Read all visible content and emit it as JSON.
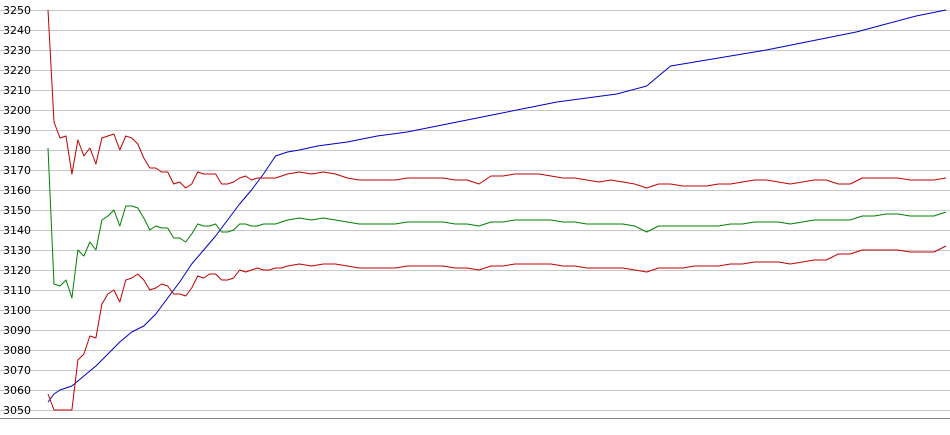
{
  "chart_data": {
    "type": "line",
    "title": "",
    "xlabel": "",
    "ylabel": "",
    "ylim": [
      3050,
      3250
    ],
    "yticks": [
      3050,
      3060,
      3070,
      3080,
      3090,
      3100,
      3110,
      3120,
      3130,
      3140,
      3150,
      3160,
      3170,
      3180,
      3190,
      3200,
      3210,
      3220,
      3230,
      3240,
      3250
    ],
    "xlim": [
      0,
      150
    ],
    "grid": "horizontal",
    "legend": "none",
    "series": [
      {
        "color": "#0000c0",
        "x": [
          0,
          1,
          2,
          4,
          6,
          8,
          10,
          12,
          14,
          16,
          18,
          20,
          22,
          24,
          26,
          28,
          30,
          32,
          34,
          36,
          38,
          40,
          42,
          45,
          50,
          55,
          60,
          65,
          70,
          75,
          80,
          85,
          90,
          95,
          100,
          102,
          104,
          106,
          108,
          110,
          112,
          114,
          116,
          118,
          120,
          125,
          130,
          135,
          140,
          145,
          150
        ],
        "y": [
          3054,
          3058,
          3060,
          3062,
          3067,
          3072,
          3078,
          3084,
          3089,
          3092,
          3098,
          3106,
          3114,
          3123,
          3130,
          3137,
          3145,
          3153,
          3160,
          3168,
          3177,
          3179,
          3180,
          3182,
          3184,
          3187,
          3189,
          3192,
          3195,
          3198,
          3201,
          3204,
          3206,
          3208,
          3212,
          3217,
          3222,
          3223,
          3224,
          3225,
          3226,
          3227,
          3228,
          3229,
          3230,
          3233,
          3236,
          3239,
          3243,
          3247,
          3250
        ]
      },
      {
        "color": "#c00000",
        "x": [
          0,
          1,
          2,
          3,
          4,
          5,
          6,
          7,
          8,
          9,
          10,
          11,
          12,
          13,
          14,
          15,
          16,
          17,
          18,
          19,
          20,
          21,
          22,
          23,
          24,
          25,
          26,
          27,
          28,
          29,
          30,
          31,
          32,
          33,
          34,
          35,
          36,
          37,
          38,
          39,
          40,
          42,
          44,
          46,
          48,
          50,
          52,
          54,
          56,
          58,
          60,
          62,
          64,
          66,
          68,
          70,
          72,
          74,
          76,
          78,
          80,
          82,
          84,
          86,
          88,
          90,
          92,
          94,
          96,
          98,
          100,
          102,
          104,
          106,
          108,
          110,
          112,
          114,
          116,
          118,
          120,
          122,
          124,
          126,
          128,
          130,
          132,
          134,
          136,
          138,
          140,
          142,
          144,
          146,
          148,
          150
        ],
        "y": [
          3250,
          3194,
          3186,
          3187,
          3168,
          3185,
          3177,
          3181,
          3173,
          3186,
          3187,
          3188,
          3180,
          3187,
          3186,
          3183,
          3176,
          3171,
          3171,
          3169,
          3169,
          3163,
          3164,
          3161,
          3163,
          3169,
          3168,
          3168,
          3168,
          3163,
          3163,
          3164,
          3166,
          3167,
          3165,
          3166,
          3166,
          3166,
          3166,
          3167,
          3168,
          3169,
          3168,
          3169,
          3168,
          3166,
          3165,
          3165,
          3165,
          3165,
          3166,
          3166,
          3166,
          3166,
          3165,
          3165,
          3163,
          3167,
          3167,
          3168,
          3168,
          3168,
          3167,
          3166,
          3166,
          3165,
          3164,
          3165,
          3164,
          3163,
          3161,
          3163,
          3163,
          3162,
          3162,
          3162,
          3163,
          3163,
          3164,
          3165,
          3165,
          3164,
          3163,
          3164,
          3165,
          3165,
          3163,
          3163,
          3166,
          3166,
          3166,
          3166,
          3165,
          3165,
          3165,
          3166
        ]
      },
      {
        "color": "#008000",
        "x": [
          0,
          1,
          2,
          3,
          4,
          5,
          6,
          7,
          8,
          9,
          10,
          11,
          12,
          13,
          14,
          15,
          16,
          17,
          18,
          19,
          20,
          21,
          22,
          23,
          24,
          25,
          26,
          27,
          28,
          29,
          30,
          31,
          32,
          33,
          34,
          35,
          36,
          37,
          38,
          39,
          40,
          42,
          44,
          46,
          48,
          50,
          52,
          54,
          56,
          58,
          60,
          62,
          64,
          66,
          68,
          70,
          72,
          74,
          76,
          78,
          80,
          82,
          84,
          86,
          88,
          90,
          92,
          94,
          96,
          98,
          100,
          102,
          104,
          106,
          108,
          110,
          112,
          114,
          116,
          118,
          120,
          122,
          124,
          126,
          128,
          130,
          132,
          134,
          136,
          138,
          140,
          142,
          144,
          146,
          148,
          150
        ],
        "y": [
          3181,
          3113,
          3112,
          3115,
          3106,
          3130,
          3127,
          3134,
          3130,
          3145,
          3147,
          3150,
          3142,
          3152,
          3152,
          3151,
          3146,
          3140,
          3142,
          3141,
          3141,
          3136,
          3136,
          3134,
          3138,
          3143,
          3142,
          3142,
          3143,
          3139,
          3139,
          3140,
          3143,
          3143,
          3142,
          3142,
          3143,
          3143,
          3143,
          3144,
          3145,
          3146,
          3145,
          3146,
          3145,
          3144,
          3143,
          3143,
          3143,
          3143,
          3144,
          3144,
          3144,
          3144,
          3143,
          3143,
          3142,
          3144,
          3144,
          3145,
          3145,
          3145,
          3145,
          3144,
          3144,
          3143,
          3143,
          3143,
          3143,
          3142,
          3139,
          3142,
          3142,
          3142,
          3142,
          3142,
          3142,
          3143,
          3143,
          3144,
          3144,
          3144,
          3143,
          3144,
          3145,
          3145,
          3145,
          3145,
          3147,
          3147,
          3148,
          3148,
          3147,
          3147,
          3147,
          3149
        ]
      },
      {
        "color": "#c00000",
        "x": [
          0,
          1,
          2,
          3,
          4,
          5,
          6,
          7,
          8,
          9,
          10,
          11,
          12,
          13,
          14,
          15,
          16,
          17,
          18,
          19,
          20,
          21,
          22,
          23,
          24,
          25,
          26,
          27,
          28,
          29,
          30,
          31,
          32,
          33,
          34,
          35,
          36,
          37,
          38,
          39,
          40,
          42,
          44,
          46,
          48,
          50,
          52,
          54,
          56,
          58,
          60,
          62,
          64,
          66,
          68,
          70,
          72,
          74,
          76,
          78,
          80,
          82,
          84,
          86,
          88,
          90,
          92,
          94,
          96,
          98,
          100,
          102,
          104,
          106,
          108,
          110,
          112,
          114,
          116,
          118,
          120,
          122,
          124,
          126,
          128,
          130,
          132,
          134,
          136,
          138,
          140,
          142,
          144,
          146,
          148,
          150
        ],
        "y": [
          3058,
          3050,
          3050,
          3050,
          3050,
          3075,
          3078,
          3087,
          3086,
          3103,
          3108,
          3110,
          3104,
          3115,
          3116,
          3118,
          3115,
          3110,
          3111,
          3113,
          3112,
          3108,
          3108,
          3107,
          3111,
          3117,
          3116,
          3118,
          3118,
          3115,
          3115,
          3116,
          3120,
          3119,
          3120,
          3121,
          3120,
          3120,
          3121,
          3121,
          3122,
          3123,
          3122,
          3123,
          3123,
          3122,
          3121,
          3121,
          3121,
          3121,
          3122,
          3122,
          3122,
          3122,
          3121,
          3121,
          3120,
          3122,
          3122,
          3123,
          3123,
          3123,
          3123,
          3122,
          3122,
          3121,
          3121,
          3121,
          3121,
          3120,
          3119,
          3121,
          3121,
          3121,
          3122,
          3122,
          3122,
          3123,
          3123,
          3124,
          3124,
          3124,
          3123,
          3124,
          3125,
          3125,
          3128,
          3128,
          3130,
          3130,
          3130,
          3130,
          3129,
          3129,
          3129,
          3132
        ]
      }
    ]
  }
}
